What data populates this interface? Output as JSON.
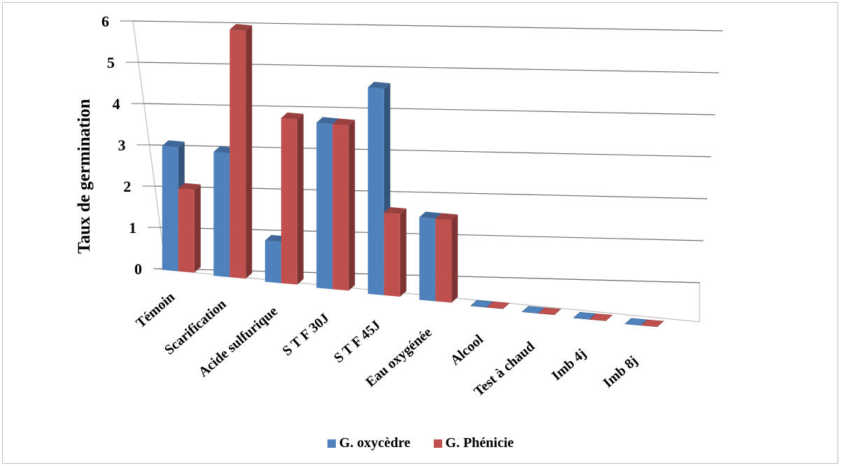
{
  "chart_data": {
    "type": "bar",
    "title": "",
    "xlabel": "",
    "ylabel": "Taux de germination",
    "ylim": [
      0,
      6
    ],
    "yticks": [
      "0",
      "1",
      "2",
      "3",
      "4",
      "5",
      "6"
    ],
    "categories": [
      "Témoin",
      "Scarification",
      "Acide sulfurique",
      "S T F 30J",
      "S T F 45J",
      "Eau oxygénée",
      "Alcool",
      "Test à chaud",
      "Imb 4j",
      "Imb 8j"
    ],
    "series": [
      {
        "name": "G. oxycèdre",
        "color": "#4f81bd",
        "values": [
          3,
          3,
          1,
          4,
          5,
          2,
          0,
          0,
          0,
          0
        ]
      },
      {
        "name": "G. Phénicie",
        "color": "#c0504d",
        "values": [
          2,
          6,
          4,
          4,
          2,
          2,
          0,
          0,
          0,
          0
        ]
      }
    ],
    "grid": true,
    "legend_position": "bottom"
  }
}
